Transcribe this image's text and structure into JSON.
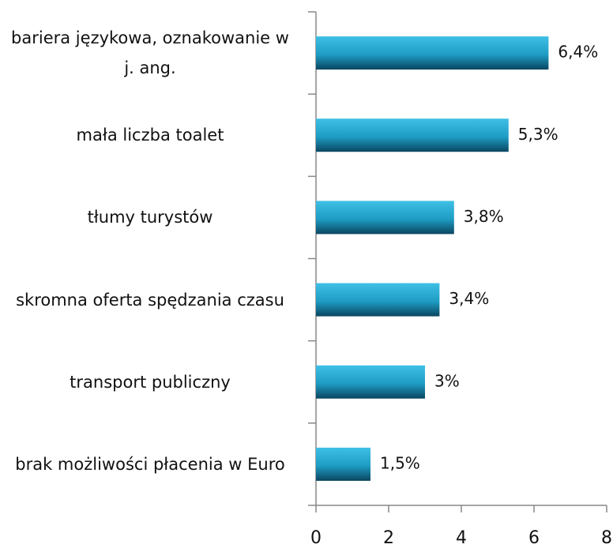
{
  "chart_data": {
    "type": "barh",
    "categories": [
      "bariera językowa, oznakowanie w j. ang.",
      "mała liczba toalet",
      "tłumy turystów",
      "skromna oferta spędzania czasu",
      "transport publiczny",
      "brak możliwości płacenia w Euro"
    ],
    "values": [
      6.4,
      5.3,
      3.8,
      3.4,
      3,
      1.5
    ],
    "value_labels": [
      "6,4%",
      "5,3%",
      "3,8%",
      "3,4%",
      "3%",
      "1,5%"
    ],
    "color": "#1e9cc4",
    "xlim": [
      0,
      8
    ],
    "xticks": [
      0,
      2,
      4,
      6,
      8
    ]
  }
}
